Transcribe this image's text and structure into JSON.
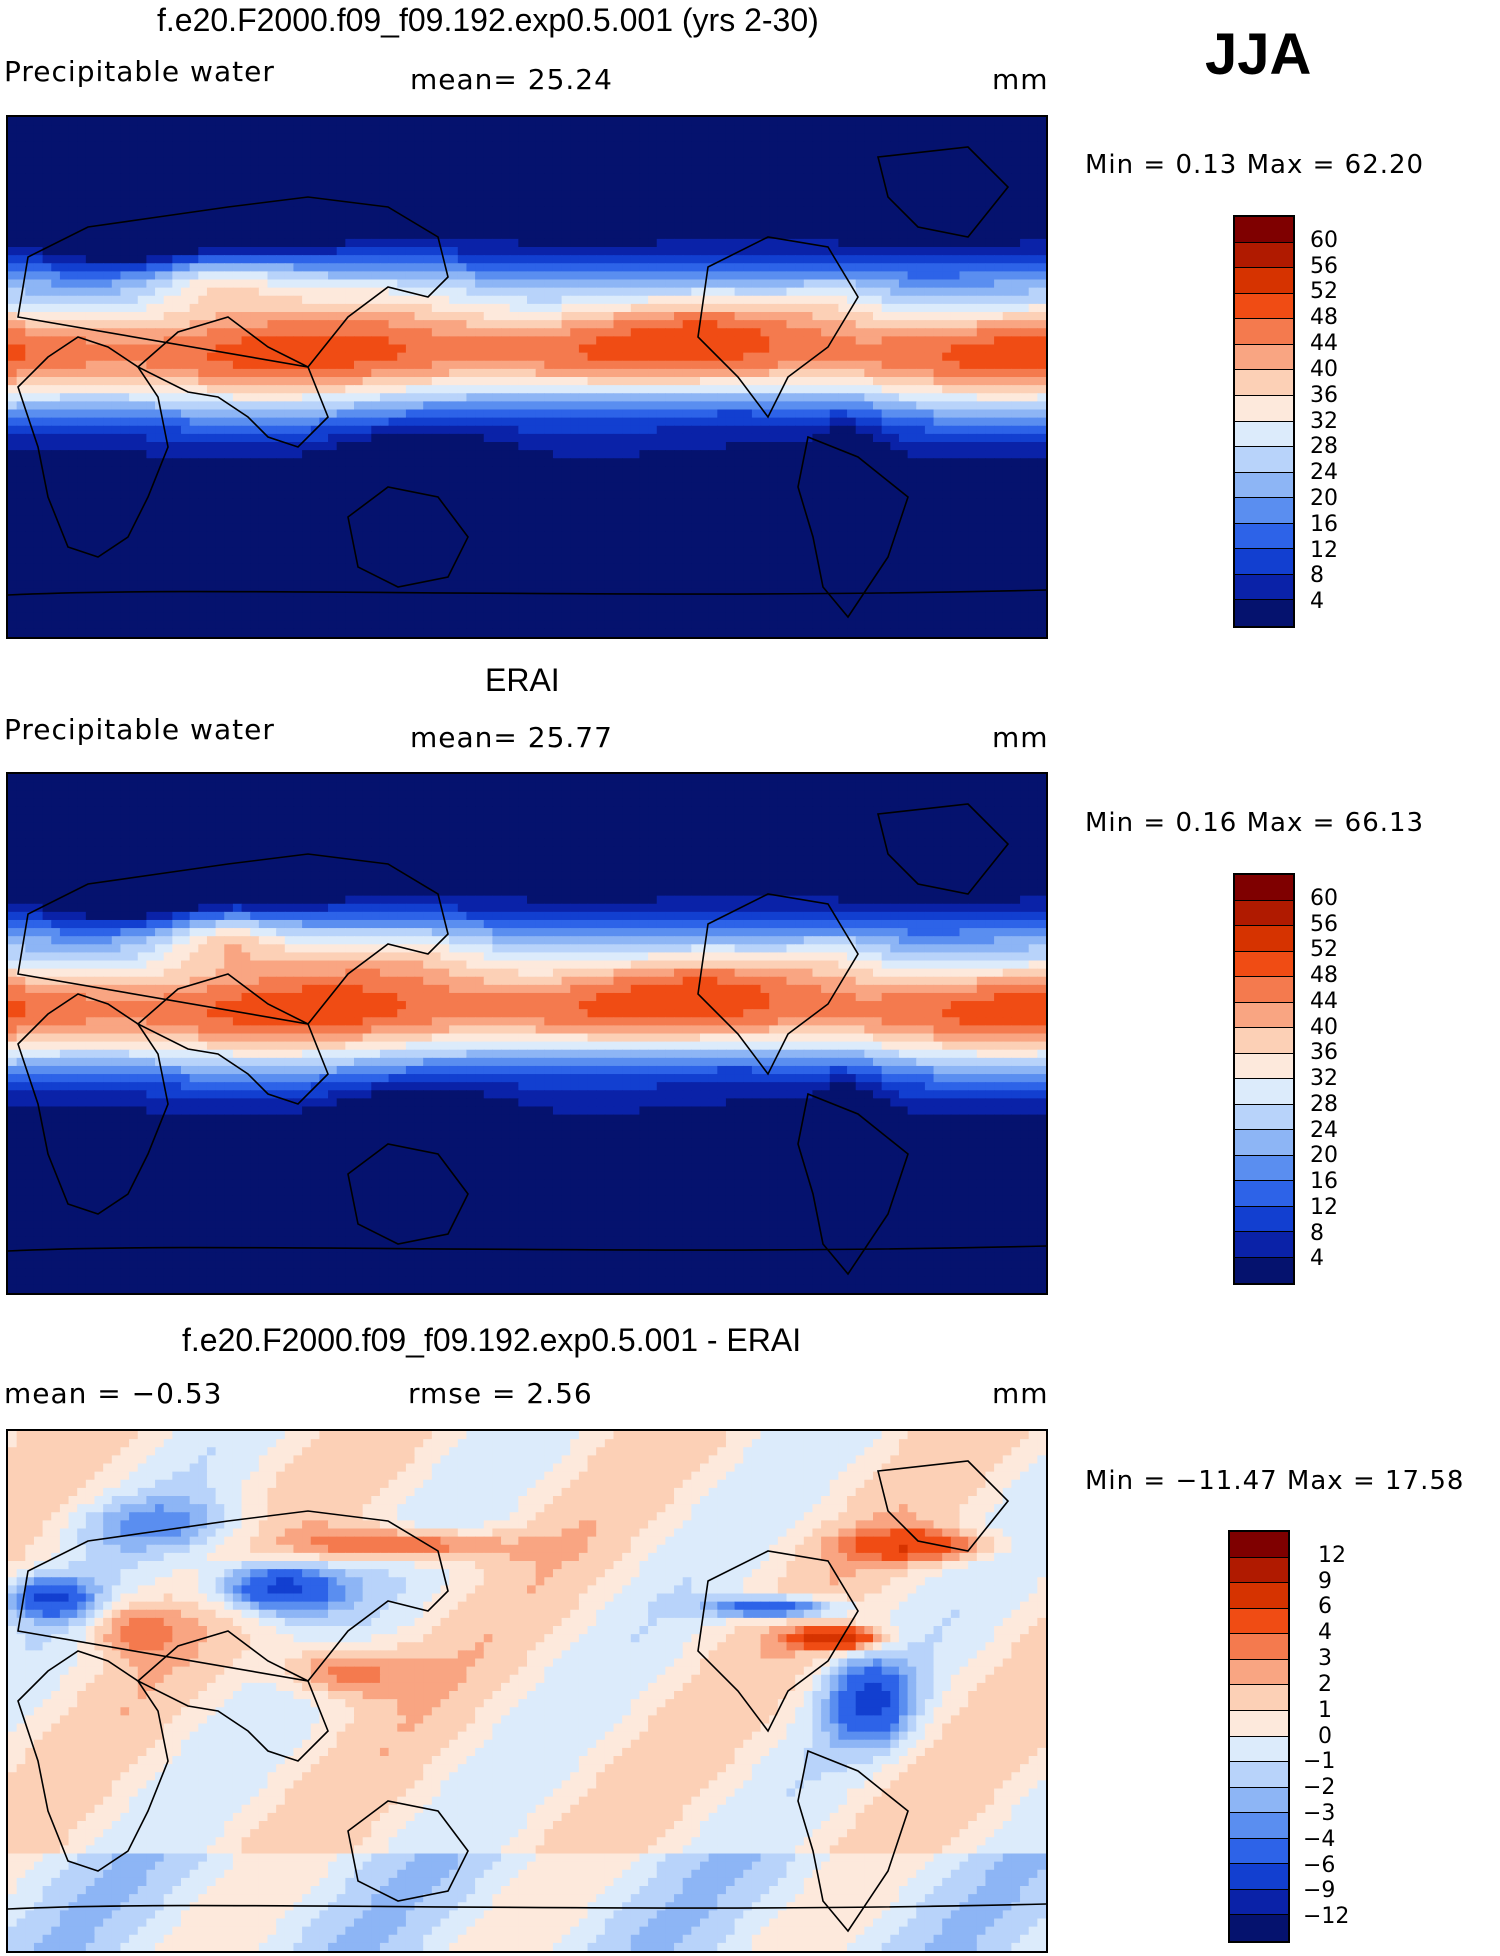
{
  "season": "JJA",
  "panels": [
    {
      "title": "f.e20.F2000.f09_f09.192.exp0.5.001 (yrs 2-30)",
      "left_text": "Precipitable water",
      "center_text": "mean=   25.24",
      "units": "mm",
      "minmax": "Min =    0.13 Max =   62.20",
      "field": "model"
    },
    {
      "title": "ERAI",
      "left_text": "Precipitable water",
      "center_text": "mean=   25.77",
      "units": "mm",
      "minmax": "Min =    0.16 Max =   66.13",
      "field": "obs"
    },
    {
      "title": "f.e20.F2000.f09_f09.192.exp0.5.001 - ERAI",
      "left_text": "mean =   −0.53",
      "center_text": "rmse =    2.56",
      "units": "mm",
      "minmax": "Min = −11.47 Max =   17.58",
      "field": "diff"
    }
  ],
  "colorbars": {
    "abs": {
      "labels": [
        "60",
        "56",
        "52",
        "48",
        "44",
        "40",
        "36",
        "32",
        "28",
        "24",
        "20",
        "16",
        "12",
        "8",
        "4"
      ],
      "colors": [
        "#7f0000",
        "#b01a00",
        "#d63300",
        "#f04c14",
        "#f47a4e",
        "#f9a582",
        "#fcd0b6",
        "#fde9dc",
        "#dcebfb",
        "#b8d3fa",
        "#8db5f5",
        "#5a8ef0",
        "#2d63e8",
        "#123fd0",
        "#0a22a8",
        "#05126e"
      ]
    },
    "diff": {
      "labels": [
        "12",
        "9",
        "6",
        "4",
        "3",
        "2",
        "1",
        "0",
        "−1",
        "−2",
        "−3",
        "−4",
        "−6",
        "−9",
        "−12"
      ],
      "colors": [
        "#7f0000",
        "#b01a00",
        "#d63300",
        "#f04c14",
        "#f47a4e",
        "#f9a582",
        "#fcd0b6",
        "#fde9dc",
        "#dcebfb",
        "#b8d3fa",
        "#8db5f5",
        "#5a8ef0",
        "#2d63e8",
        "#123fd0",
        "#0a22a8",
        "#05126e"
      ]
    }
  }
}
